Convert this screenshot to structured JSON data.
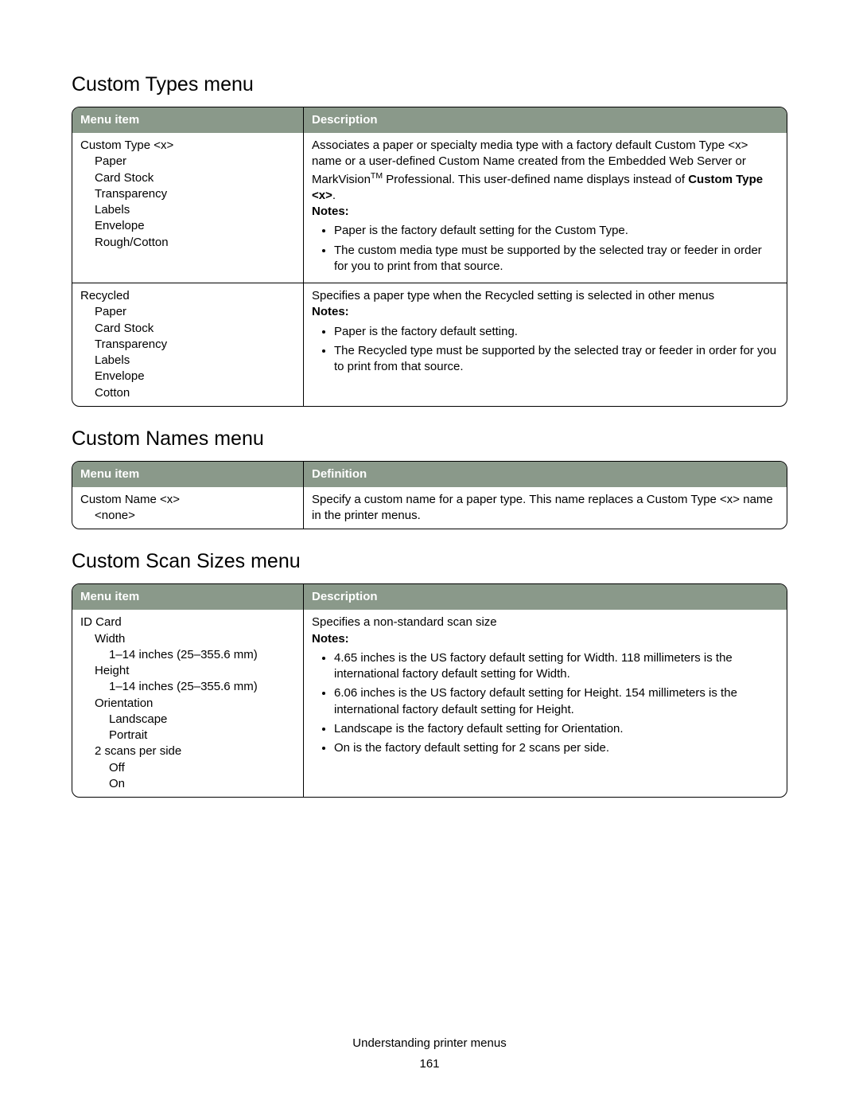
{
  "sections": {
    "customTypes": {
      "title": "Custom Types menu",
      "headers": {
        "menuItem": "Menu item",
        "description": "Description"
      },
      "row1": {
        "title": "Custom Type <x>",
        "opt1": "Paper",
        "opt2": "Card Stock",
        "opt3": "Transparency",
        "opt4": "Labels",
        "opt5": "Envelope",
        "opt6": "Rough/Cotton",
        "desc_p1a": "Associates a paper or specialty media type with a factory default ",
        "desc_p1b": "Custom Type <x>",
        "desc_p1c": " name or a user-defined Custom Name created from the Embedded Web Server or MarkVision",
        "desc_tm": "TM",
        "desc_p1d": " Professional. This user-defined name displays instead of ",
        "desc_p1e": "Custom Type <x>",
        "desc_p1f": ".",
        "notesLabel": "Notes:",
        "note1": "Paper is the factory default setting for the Custom Type.",
        "note2": "The custom media type must be supported by the selected tray or feeder in order for you to print from that source."
      },
      "row2": {
        "title": "Recycled",
        "opt1": "Paper",
        "opt2": "Card Stock",
        "opt3": "Transparency",
        "opt4": "Labels",
        "opt5": "Envelope",
        "opt6": "Cotton",
        "desc_p1": "Specifies a paper type when the Recycled setting is selected in other menus",
        "notesLabel": "Notes:",
        "note1": "Paper is the factory default setting.",
        "note2": "The Recycled type must be supported by the selected tray or feeder in order for you to print from that source."
      }
    },
    "customNames": {
      "title": "Custom Names menu",
      "headers": {
        "menuItem": "Menu item",
        "definition": "Definition"
      },
      "row1": {
        "title": "Custom Name <x>",
        "opt1": "<none>",
        "desc_a": "Specify a custom name for a paper type. This name replaces a ",
        "desc_b": "Custom Type <x>",
        "desc_c": " name in the printer menus."
      }
    },
    "customScan": {
      "title": "Custom Scan Sizes menu",
      "headers": {
        "menuItem": "Menu item",
        "description": "Description"
      },
      "row1": {
        "title": "ID Card",
        "o1": "Width",
        "o1a": "1–14 inches (25–355.6 mm)",
        "o2": "Height",
        "o2a": "1–14 inches (25–355.6 mm)",
        "o3": "Orientation",
        "o3a": "Landscape",
        "o3b": "Portrait",
        "o4": "2 scans per side",
        "o4a": "Off",
        "o4b": "On",
        "desc_p1": "Specifies a non-standard scan size",
        "notesLabel": "Notes:",
        "note1": "4.65 inches is the US factory default setting for Width. 118 millimeters is the international factory default setting for Width.",
        "note2": "6.06 inches is the US factory default setting for Height. 154 millimeters is the international factory default setting for Height.",
        "note3": "Landscape is the factory default setting for Orientation.",
        "note4": "On is the factory default setting for 2 scans per side."
      }
    }
  },
  "footer": {
    "text": "Understanding printer menus",
    "pageNumber": "161"
  }
}
